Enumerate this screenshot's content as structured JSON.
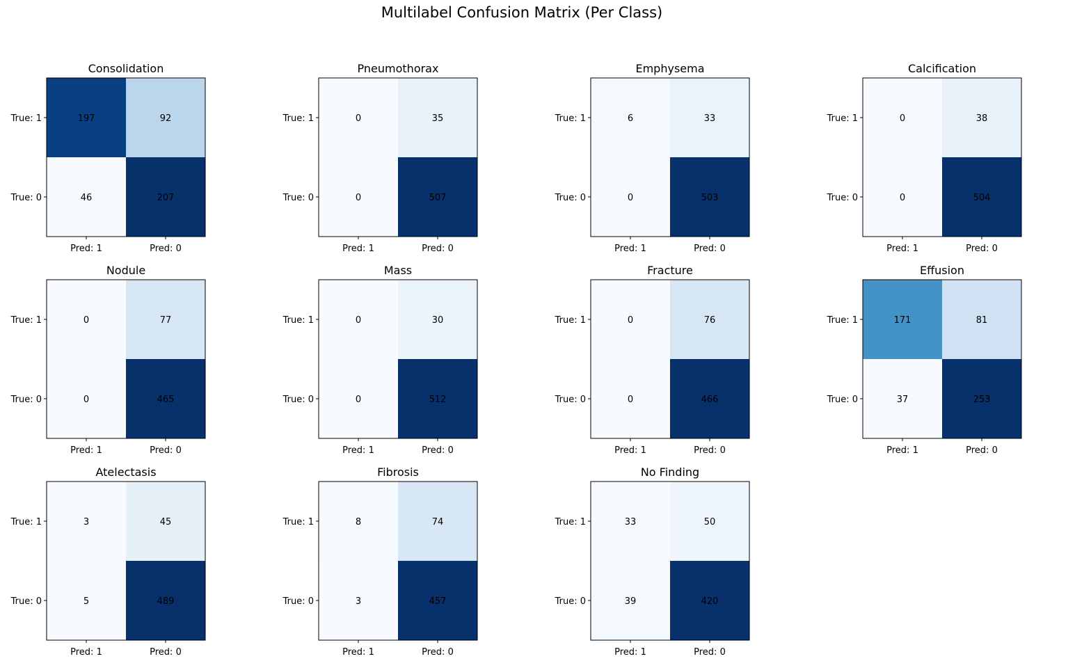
{
  "chart_data": {
    "type": "heatmap",
    "title": "Multilabel Confusion Matrix (Per Class)",
    "colormap": "Blues",
    "row_labels": [
      "True: 1",
      "True: 0"
    ],
    "col_labels": [
      "Pred: 1",
      "Pred: 0"
    ],
    "panels": [
      {
        "name": "Consolidation",
        "matrix": [
          [
            197,
            92
          ],
          [
            46,
            207
          ]
        ]
      },
      {
        "name": "Pneumothorax",
        "matrix": [
          [
            0,
            35
          ],
          [
            0,
            507
          ]
        ]
      },
      {
        "name": "Emphysema",
        "matrix": [
          [
            6,
            33
          ],
          [
            0,
            503
          ]
        ]
      },
      {
        "name": "Calcification",
        "matrix": [
          [
            0,
            38
          ],
          [
            0,
            504
          ]
        ]
      },
      {
        "name": "Nodule",
        "matrix": [
          [
            0,
            77
          ],
          [
            0,
            465
          ]
        ]
      },
      {
        "name": "Mass",
        "matrix": [
          [
            0,
            30
          ],
          [
            0,
            512
          ]
        ]
      },
      {
        "name": "Fracture",
        "matrix": [
          [
            0,
            76
          ],
          [
            0,
            466
          ]
        ]
      },
      {
        "name": "Effusion",
        "matrix": [
          [
            171,
            81
          ],
          [
            37,
            253
          ]
        ]
      },
      {
        "name": "Atelectasis",
        "matrix": [
          [
            3,
            45
          ],
          [
            5,
            489
          ]
        ]
      },
      {
        "name": "Fibrosis",
        "matrix": [
          [
            8,
            74
          ],
          [
            3,
            457
          ]
        ]
      },
      {
        "name": "No Finding",
        "matrix": [
          [
            33,
            50
          ],
          [
            39,
            420
          ]
        ]
      }
    ]
  }
}
